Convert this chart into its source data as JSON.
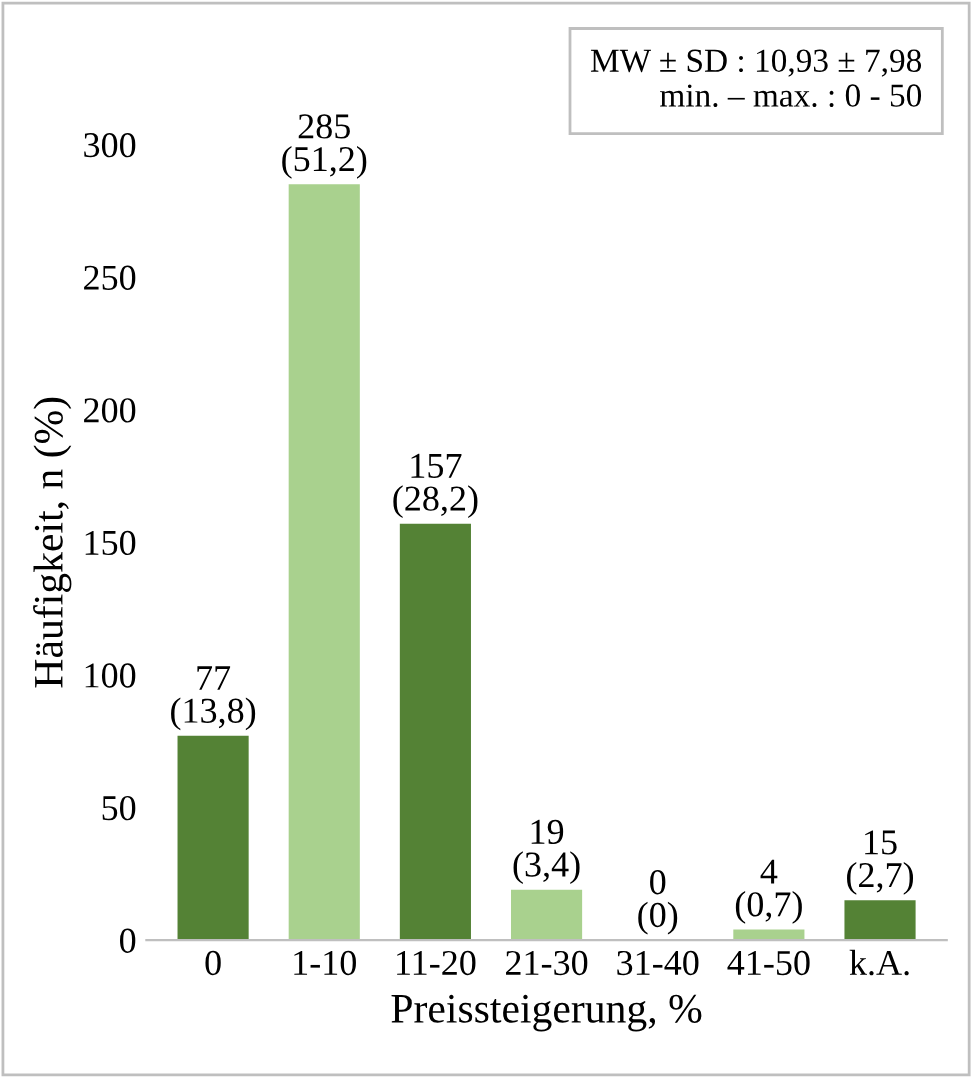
{
  "chart_data": {
    "type": "bar",
    "xlabel": "Preissteigerung, %",
    "ylabel": "Häufigkeit, n (%)",
    "categories": [
      "0",
      "1-10",
      "11-20",
      "21-30",
      "31-40",
      "41-50",
      "k.A."
    ],
    "values": [
      77,
      285,
      157,
      19,
      0,
      4,
      15
    ],
    "colors": [
      "#548235",
      "#a9d18e",
      "#548235",
      "#a9d18e",
      "#548235",
      "#a9d18e",
      "#548235"
    ],
    "value_labels": [
      "77\n(13,8)",
      "285\n(51,2)",
      "157\n(28,2)",
      "19\n(3,4)",
      "0\n(0)",
      "4\n(0,7)",
      "15\n(2,7)"
    ],
    "ylim": [
      0,
      300
    ],
    "yticks": [
      0,
      50,
      100,
      150,
      200,
      250,
      300
    ],
    "grid": false,
    "annotations": [
      "MW ± SD : 10,93 ± 7,98\nmin. – max. : 0 - 50"
    ]
  }
}
